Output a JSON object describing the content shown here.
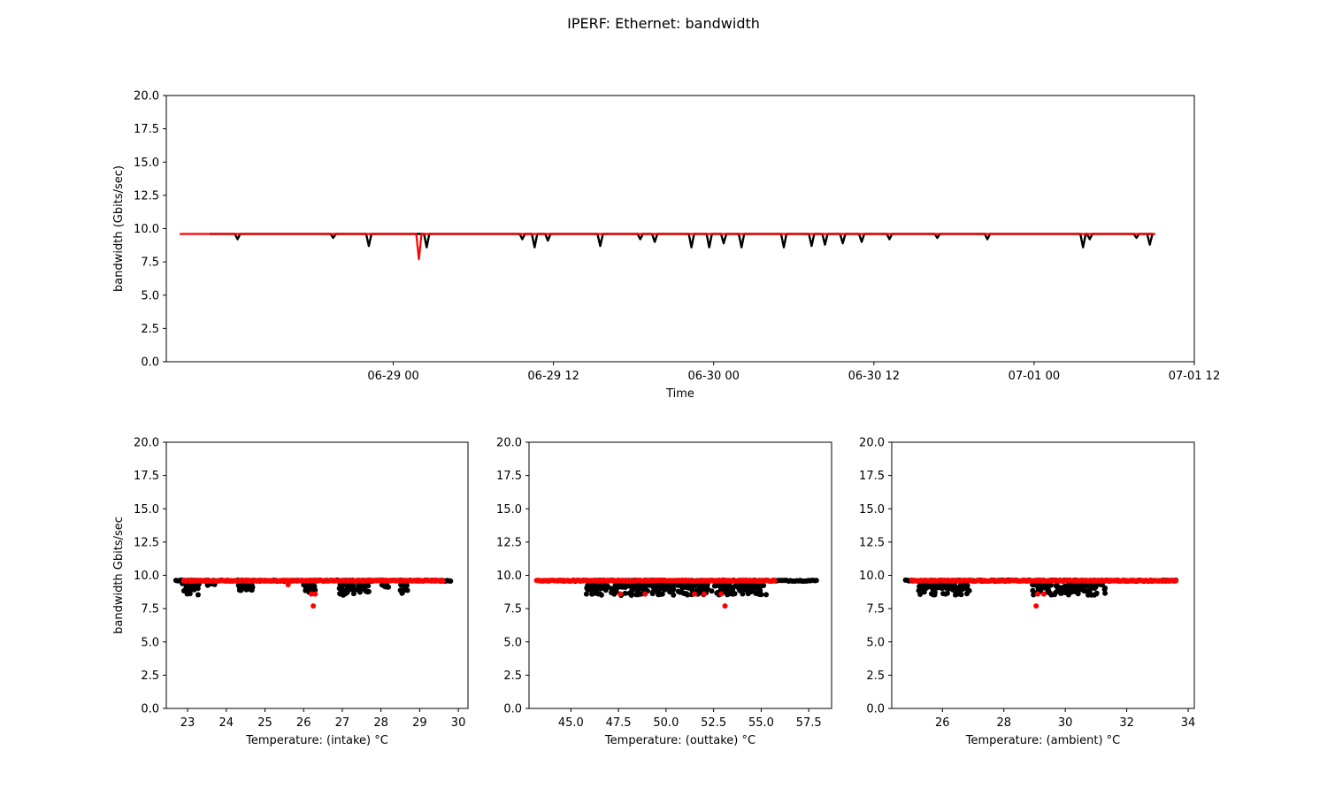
{
  "figure": {
    "title": "IPERF: Ethernet: bandwidth"
  },
  "colors": {
    "series_all": "#000000",
    "series_highlight": "#ff0000",
    "axes": "#000000",
    "background": "#ffffff"
  },
  "chart_data": [
    {
      "id": "time",
      "type": "line",
      "title": "",
      "xlabel": "Time",
      "ylabel": "bandwidth (Gbits/sec)",
      "x_type": "datetime",
      "xlim": [
        "2019-06-28 07:00",
        "2019-07-01 12:00"
      ],
      "ylim": [
        0,
        20
      ],
      "yticks": [
        "0.0",
        "2.5",
        "5.0",
        "7.5",
        "10.0",
        "12.5",
        "15.0",
        "17.5",
        "20.0"
      ],
      "xticks": [
        {
          "value": "2019-06-29 00:00",
          "label": "06-29 00"
        },
        {
          "value": "2019-06-29 12:00",
          "label": "06-29 12"
        },
        {
          "value": "2019-06-30 00:00",
          "label": "06-30 00"
        },
        {
          "value": "2019-06-30 12:00",
          "label": "06-30 12"
        },
        {
          "value": "2019-07-01 00:00",
          "label": "07-01 00"
        },
        {
          "value": "2019-07-01 12:00",
          "label": "07-01 12"
        }
      ],
      "grid": false,
      "series": [
        {
          "color": "#000000",
          "baseline": 9.6,
          "start": "2019-06-28 10:15",
          "end": "2019-07-01 08:10",
          "dips": [
            {
              "time": "2019-06-28 12:20",
              "value": 9.2
            },
            {
              "time": "2019-06-28 19:30",
              "value": 9.3
            },
            {
              "time": "2019-06-28 22:10",
              "value": 8.7
            },
            {
              "time": "2019-06-29 02:30",
              "value": 8.6
            },
            {
              "time": "2019-06-29 09:40",
              "value": 9.2
            },
            {
              "time": "2019-06-29 10:35",
              "value": 8.6
            },
            {
              "time": "2019-06-29 11:35",
              "value": 9.1
            },
            {
              "time": "2019-06-29 15:30",
              "value": 8.7
            },
            {
              "time": "2019-06-29 18:30",
              "value": 9.2
            },
            {
              "time": "2019-06-29 19:35",
              "value": 9.0
            },
            {
              "time": "2019-06-29 22:20",
              "value": 8.6
            },
            {
              "time": "2019-06-29 23:40",
              "value": 8.6
            },
            {
              "time": "2019-06-30 00:45",
              "value": 8.9
            },
            {
              "time": "2019-06-30 02:05",
              "value": 8.6
            },
            {
              "time": "2019-06-30 05:15",
              "value": 8.6
            },
            {
              "time": "2019-06-30 07:20",
              "value": 8.7
            },
            {
              "time": "2019-06-30 08:20",
              "value": 8.8
            },
            {
              "time": "2019-06-30 09:40",
              "value": 8.9
            },
            {
              "time": "2019-06-30 11:05",
              "value": 9.0
            },
            {
              "time": "2019-06-30 13:10",
              "value": 9.2
            },
            {
              "time": "2019-06-30 16:45",
              "value": 9.3
            },
            {
              "time": "2019-06-30 20:30",
              "value": 9.2
            },
            {
              "time": "2019-07-01 03:40",
              "value": 8.6
            },
            {
              "time": "2019-07-01 04:10",
              "value": 9.2
            },
            {
              "time": "2019-07-01 07:40",
              "value": 9.3
            },
            {
              "time": "2019-07-01 08:40",
              "value": 8.8
            }
          ]
        },
        {
          "color": "#ff0000",
          "baseline": 9.6,
          "start": "2019-06-28 08:00",
          "end": "2019-07-01 09:05",
          "dips": [
            {
              "time": "2019-06-29 01:55",
              "value": 7.7
            }
          ]
        }
      ]
    },
    {
      "id": "intake",
      "type": "scatter",
      "title": "",
      "xlabel": "Temperature: (intake) °C",
      "ylabel": "bandwidth Gbits/sec",
      "xlim": [
        22.45,
        30.25
      ],
      "ylim": [
        0,
        20
      ],
      "xticks": [
        "23",
        "24",
        "25",
        "26",
        "27",
        "28",
        "29",
        "30"
      ],
      "yticks": [
        "0.0",
        "2.5",
        "5.0",
        "7.5",
        "10.0",
        "12.5",
        "15.0",
        "17.5",
        "20.0"
      ],
      "grid": false,
      "series": [
        {
          "color": "#000000",
          "band": {
            "xmin": 22.7,
            "xmax": 29.8,
            "y": 9.6
          },
          "clusters": [
            {
              "xmin": 22.85,
              "xmax": 23.3,
              "ymin": 8.5,
              "ymax": 9.4
            },
            {
              "xmin": 23.5,
              "xmax": 23.7,
              "ymin": 9.2,
              "ymax": 9.5
            },
            {
              "xmin": 24.3,
              "xmax": 24.7,
              "ymin": 8.7,
              "ymax": 9.3
            },
            {
              "xmin": 26.0,
              "xmax": 26.3,
              "ymin": 8.7,
              "ymax": 9.3
            },
            {
              "xmin": 26.9,
              "xmax": 27.7,
              "ymin": 8.5,
              "ymax": 9.3
            },
            {
              "xmin": 28.0,
              "xmax": 28.2,
              "ymin": 9.1,
              "ymax": 9.4
            },
            {
              "xmin": 28.5,
              "xmax": 28.7,
              "ymin": 8.6,
              "ymax": 9.3
            }
          ]
        },
        {
          "color": "#ff0000",
          "band": {
            "xmin": 22.9,
            "xmax": 29.6,
            "y": 9.6
          },
          "points": [
            {
              "x": 25.6,
              "y": 9.3
            },
            {
              "x": 26.2,
              "y": 8.6
            },
            {
              "x": 26.3,
              "y": 8.6
            },
            {
              "x": 26.25,
              "y": 7.7
            }
          ]
        }
      ]
    },
    {
      "id": "outtake",
      "type": "scatter",
      "title": "",
      "xlabel": "Temperature: (outtake) °C",
      "ylabel": "",
      "xlim": [
        42.8,
        58.7
      ],
      "ylim": [
        0,
        20
      ],
      "xticks": [
        "45.0",
        "47.5",
        "50.0",
        "52.5",
        "55.0",
        "57.5"
      ],
      "yticks": [
        "0.0",
        "2.5",
        "5.0",
        "7.5",
        "10.0",
        "12.5",
        "15.0",
        "17.5",
        "20.0"
      ],
      "grid": false,
      "series": [
        {
          "color": "#000000",
          "band": {
            "xmin": 44.3,
            "xmax": 57.9,
            "y": 9.6
          },
          "clusters": [
            {
              "xmin": 45.8,
              "xmax": 55.3,
              "ymin": 8.5,
              "ymax": 9.3
            }
          ]
        },
        {
          "color": "#ff0000",
          "band": {
            "xmin": 43.2,
            "xmax": 55.7,
            "y": 9.6
          },
          "points": [
            {
              "x": 47.6,
              "y": 8.6
            },
            {
              "x": 48.9,
              "y": 8.6
            },
            {
              "x": 51.5,
              "y": 8.6
            },
            {
              "x": 52.0,
              "y": 8.6
            },
            {
              "x": 52.9,
              "y": 8.6
            },
            {
              "x": 53.1,
              "y": 7.7
            }
          ]
        }
      ]
    },
    {
      "id": "ambient",
      "type": "scatter",
      "title": "",
      "xlabel": "Temperature: (ambient) °C",
      "ylabel": "",
      "xlim": [
        24.35,
        34.2
      ],
      "ylim": [
        0,
        20
      ],
      "xticks": [
        "26",
        "28",
        "30",
        "32",
        "34"
      ],
      "yticks": [
        "0.0",
        "2.5",
        "5.0",
        "7.5",
        "10.0",
        "12.5",
        "15.0",
        "17.5",
        "20.0"
      ],
      "grid": false,
      "series": [
        {
          "color": "#000000",
          "band": {
            "xmin": 24.8,
            "xmax": 33.6,
            "y": 9.6
          },
          "clusters": [
            {
              "xmin": 25.2,
              "xmax": 26.9,
              "ymin": 8.5,
              "ymax": 9.3
            },
            {
              "xmin": 28.9,
              "xmax": 31.3,
              "ymin": 8.5,
              "ymax": 9.3
            }
          ]
        },
        {
          "color": "#ff0000",
          "band": {
            "xmin": 25.0,
            "xmax": 33.6,
            "y": 9.6
          },
          "points": [
            {
              "x": 29.1,
              "y": 8.6
            },
            {
              "x": 29.3,
              "y": 8.6
            },
            {
              "x": 29.05,
              "y": 7.7
            }
          ]
        }
      ]
    }
  ]
}
